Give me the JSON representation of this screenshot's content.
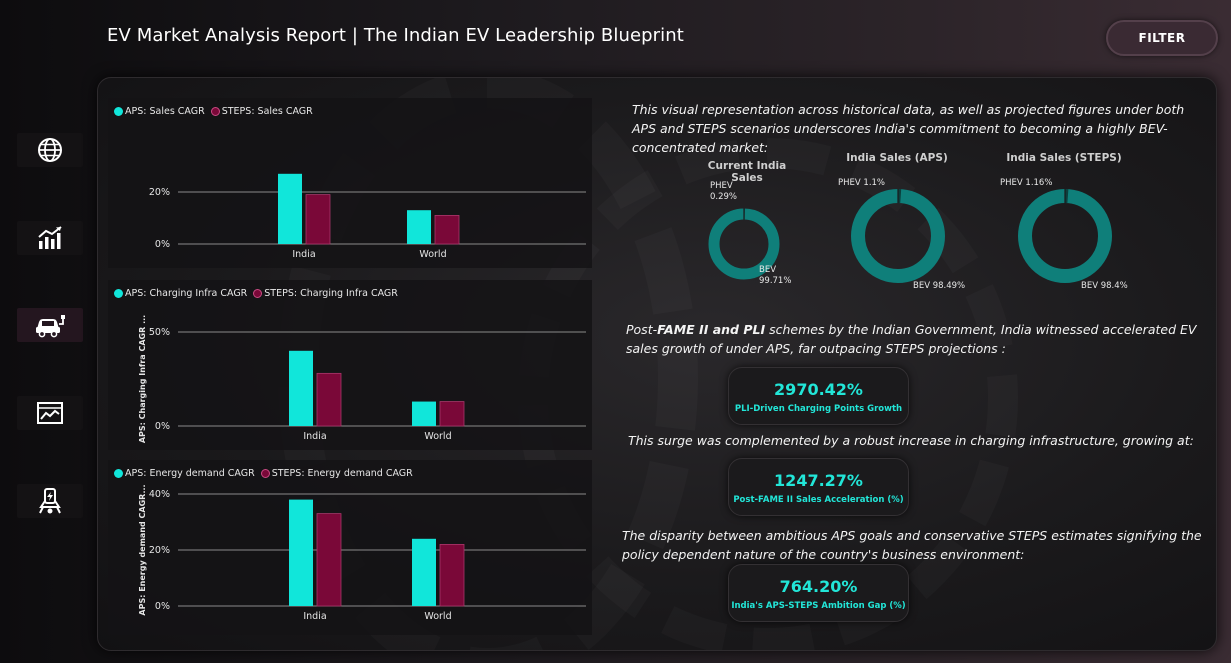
{
  "header": {
    "title": "EV Market Analysis Report | The Indian EV Leadership Blueprint",
    "filter_label": "FILTER"
  },
  "nav": {
    "items": [
      {
        "icon": "globe-icon"
      },
      {
        "icon": "bar-chart-icon"
      },
      {
        "icon": "ev-car-icon"
      },
      {
        "icon": "line-chart-icon"
      },
      {
        "icon": "charging-station-icon"
      }
    ]
  },
  "colors": {
    "aps": "#11e6da",
    "steps": "#7a0838",
    "donut": "#0f7f7a",
    "kpi": "#22e6d8"
  },
  "chart_data": [
    {
      "type": "bar",
      "legend": [
        "APS: Sales CAGR",
        "STEPS: Sales CAGR"
      ],
      "categories": [
        "India",
        "World"
      ],
      "series": [
        {
          "name": "APS: Sales CAGR",
          "values": [
            27,
            13
          ]
        },
        {
          "name": "STEPS: Sales CAGR",
          "values": [
            19,
            11
          ]
        }
      ],
      "ylabel": "",
      "yticks": [
        "0%",
        "20%"
      ],
      "ylim": [
        0,
        35
      ]
    },
    {
      "type": "bar",
      "legend": [
        "APS: Charging Infra CAGR",
        "STEPS: Charging Infra CAGR"
      ],
      "categories": [
        "India",
        "World"
      ],
      "series": [
        {
          "name": "APS: Charging Infra CAGR",
          "values": [
            40,
            13
          ]
        },
        {
          "name": "STEPS: Charging Infra CAGR",
          "values": [
            28,
            13
          ]
        }
      ],
      "ylabel": "APS: Charging Infra CAGR ...",
      "yticks": [
        "0%",
        "50%"
      ],
      "ylim": [
        0,
        50
      ]
    },
    {
      "type": "bar",
      "legend": [
        "APS: Energy demand CAGR",
        "STEPS: Energy demand CAGR"
      ],
      "categories": [
        "India",
        "World"
      ],
      "series": [
        {
          "name": "APS: Energy demand CAGR",
          "values": [
            38,
            24
          ]
        },
        {
          "name": "STEPS: Energy demand CAGR",
          "values": [
            33,
            22
          ]
        }
      ],
      "ylabel": "APS: Energy demand CAGR...",
      "yticks": [
        "0%",
        "20%",
        "40%"
      ],
      "ylim": [
        0,
        40
      ]
    },
    {
      "type": "pie",
      "title": "Current India Sales",
      "labels": [
        "PHEV",
        "BEV"
      ],
      "values": [
        0.29,
        99.71
      ],
      "label_text": [
        "PHEV 0.29%",
        "BEV 99.71%"
      ]
    },
    {
      "type": "pie",
      "title": "India Sales (APS)",
      "labels": [
        "PHEV",
        "BEV"
      ],
      "values": [
        1.1,
        98.49
      ],
      "label_text": [
        "PHEV 1.1%",
        "BEV 98.49%"
      ]
    },
    {
      "type": "pie",
      "title": "India Sales (STEPS)",
      "labels": [
        "PHEV",
        "BEV"
      ],
      "values": [
        1.16,
        98.4
      ],
      "label_text": [
        "PHEV 1.16%",
        "BEV 98.4%"
      ]
    }
  ],
  "right": {
    "intro": "This visual representation across historical data, as well as projected figures under both APS and STEPS scenarios underscores India's commitment to becoming a highly BEV-concentrated market:",
    "fame_pre": "Post-",
    "fame_bold": "FAME II and PLI",
    "fame_post": " schemes by the Indian Government, India witnessed accelerated EV sales growth of under APS, far outpacing STEPS projections :",
    "surge": "This surge was complemented by a robust increase in charging infrastructure, growing at:",
    "disparity": "The disparity between ambitious APS goals and conservative STEPS estimates signifying the policy dependent nature of the country's business environment:",
    "kpis": [
      {
        "value": "2970.42%",
        "label": "PLI-Driven Charging Points Growth"
      },
      {
        "value": "1247.27%",
        "label": "Post-FAME II Sales Acceleration (%)"
      },
      {
        "value": "764.20%",
        "label": "India's APS-STEPS Ambition Gap (%)"
      }
    ]
  }
}
